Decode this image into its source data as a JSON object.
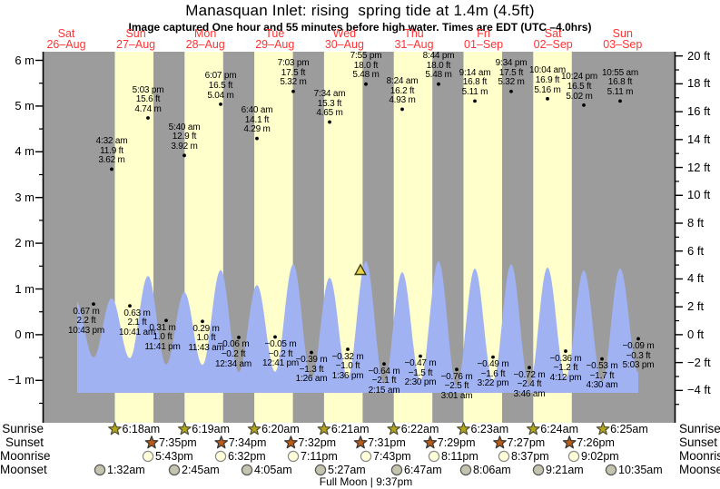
{
  "title": "Manasquan Inlet: rising  spring tide at 1.4m (4.5ft)",
  "subtitle": "Image captured One hour and 55 minutes before high water. Times are EDT (UTC –4.0hrs)",
  "days": [
    {
      "name": "Sat",
      "date": "26–Aug"
    },
    {
      "name": "Sun",
      "date": "27–Aug"
    },
    {
      "name": "Mon",
      "date": "28–Aug"
    },
    {
      "name": "Tue",
      "date": "29–Aug"
    },
    {
      "name": "Wed",
      "date": "30–Aug"
    },
    {
      "name": "Thu",
      "date": "31–Aug"
    },
    {
      "name": "Fri",
      "date": "01–Sep"
    },
    {
      "name": "Sat",
      "date": "02–Sep"
    },
    {
      "name": "Sun",
      "date": "03–Sep"
    }
  ],
  "chart_data": {
    "type": "area",
    "title": "Manasquan Inlet tide heights",
    "ylabel_left": "m",
    "ylabel_right": "ft",
    "y_axis_left_major_ticks": [
      6,
      5,
      4,
      3,
      2,
      1,
      0,
      -1
    ],
    "y_axis_right_major_ticks": [
      20,
      18,
      16,
      14,
      12,
      10,
      8,
      6,
      4,
      2,
      0,
      -2,
      -4
    ],
    "current_marker": {
      "height_m": 1.4,
      "height_ft": 4.5
    },
    "tides": [
      {
        "type": "low",
        "time": "10:43 pm",
        "height_m": 0.67,
        "height_ft": 2.2
      },
      {
        "type": "high",
        "time": "4:32 am",
        "height_m": 3.62,
        "height_ft": 11.9
      },
      {
        "type": "low",
        "time": "10:41 am",
        "height_m": 0.63,
        "height_ft": 2.1
      },
      {
        "type": "high",
        "time": "5:03 pm",
        "height_m": 4.74,
        "height_ft": 15.6
      },
      {
        "type": "low",
        "time": "11:41 pm",
        "height_m": 0.31,
        "height_ft": 1.0
      },
      {
        "type": "high",
        "time": "5:40 am",
        "height_m": 3.92,
        "height_ft": 12.9
      },
      {
        "type": "low",
        "time": "11:43 am",
        "height_m": 0.29,
        "height_ft": 1.0
      },
      {
        "type": "high",
        "time": "6:07 pm",
        "height_m": 5.04,
        "height_ft": 16.5
      },
      {
        "type": "low",
        "time": "12:34 am",
        "height_m": -0.06,
        "height_ft": -0.2
      },
      {
        "type": "high",
        "time": "6:40 am",
        "height_m": 4.29,
        "height_ft": 14.1
      },
      {
        "type": "low",
        "time": "12:41 pm",
        "height_m": -0.05,
        "height_ft": -0.2
      },
      {
        "type": "high",
        "time": "7:03 pm",
        "height_m": 5.32,
        "height_ft": 17.5
      },
      {
        "type": "low",
        "time": "1:26 am",
        "height_m": -0.39,
        "height_ft": -1.3
      },
      {
        "type": "high",
        "time": "7:34 am",
        "height_m": 4.65,
        "height_ft": 15.3
      },
      {
        "type": "low",
        "time": "1:36 pm",
        "height_m": -0.32,
        "height_ft": -1.0
      },
      {
        "type": "high",
        "time": "7:55 pm",
        "height_m": 5.48,
        "height_ft": 18.0
      },
      {
        "type": "low",
        "time": "2:15 am",
        "height_m": -0.64,
        "height_ft": -2.1
      },
      {
        "type": "high",
        "time": "8:24 am",
        "height_m": 4.93,
        "height_ft": 16.2
      },
      {
        "type": "low",
        "time": "2:30 pm",
        "height_m": -0.47,
        "height_ft": -1.5
      },
      {
        "type": "high",
        "time": "8:44 pm",
        "height_m": 5.48,
        "height_ft": 18.0
      },
      {
        "type": "low",
        "time": "3:01 am",
        "height_m": -0.76,
        "height_ft": -2.5
      },
      {
        "type": "high",
        "time": "9:14 am",
        "height_m": 5.11,
        "height_ft": 16.8
      },
      {
        "type": "low",
        "time": "3:22 pm",
        "height_m": -0.49,
        "height_ft": -1.6
      },
      {
        "type": "high",
        "time": "9:34 pm",
        "height_m": 5.32,
        "height_ft": 17.5
      },
      {
        "type": "low",
        "time": "3:46 am",
        "height_m": -0.72,
        "height_ft": -2.4
      },
      {
        "type": "high",
        "time": "10:04 am",
        "height_m": 5.16,
        "height_ft": 16.9
      },
      {
        "type": "low",
        "time": "4:12 pm",
        "height_m": -0.36,
        "height_ft": -1.2
      },
      {
        "type": "high",
        "time": "10:24 pm",
        "height_m": 5.02,
        "height_ft": 16.5
      },
      {
        "type": "low",
        "time": "4:30 am",
        "height_m": -0.53,
        "height_ft": -1.7
      },
      {
        "type": "high",
        "time": "10:55 am",
        "height_m": 5.11,
        "height_ft": 16.8
      },
      {
        "type": "low",
        "time": "5:03 pm",
        "height_m": -0.09,
        "height_ft": -0.3
      }
    ]
  },
  "almanac": {
    "rows": [
      {
        "label": "Sunrise",
        "icon": "sunrise-star-icon",
        "times": [
          "6:18am",
          "6:19am",
          "6:20am",
          "6:21am",
          "6:22am",
          "6:23am",
          "6:24am",
          "6:25am"
        ]
      },
      {
        "label": "Sunset",
        "icon": "sunset-star-icon",
        "times": [
          "7:35pm",
          "7:34pm",
          "7:32pm",
          "7:31pm",
          "7:29pm",
          "7:27pm",
          "7:26pm"
        ]
      },
      {
        "label": "Moonrise",
        "icon": "moonrise-circle-icon",
        "times": [
          "5:43pm",
          "6:32pm",
          "7:11pm",
          "7:43pm",
          "8:11pm",
          "8:37pm",
          "9:02pm"
        ]
      },
      {
        "label": "Moonset",
        "icon": "moonset-circle-icon",
        "times": [
          "1:32am",
          "2:45am",
          "4:05am",
          "5:27am",
          "6:47am",
          "8:06am",
          "9:21am",
          "10:35am"
        ]
      }
    ],
    "footer": "Full Moon | 9:37pm"
  },
  "colors": {
    "night_band": "#9c9c9c",
    "day_band": "#ffffcc",
    "water": "#a0b2f2",
    "day_label": "#ff3333",
    "marker_fill": "#e8d34a",
    "sunrise_star": "#b3a51e",
    "sunset_star": "#b85c17",
    "moonrise_circle": "#ffffd9",
    "moonset_circle": "#c4c4ae"
  }
}
